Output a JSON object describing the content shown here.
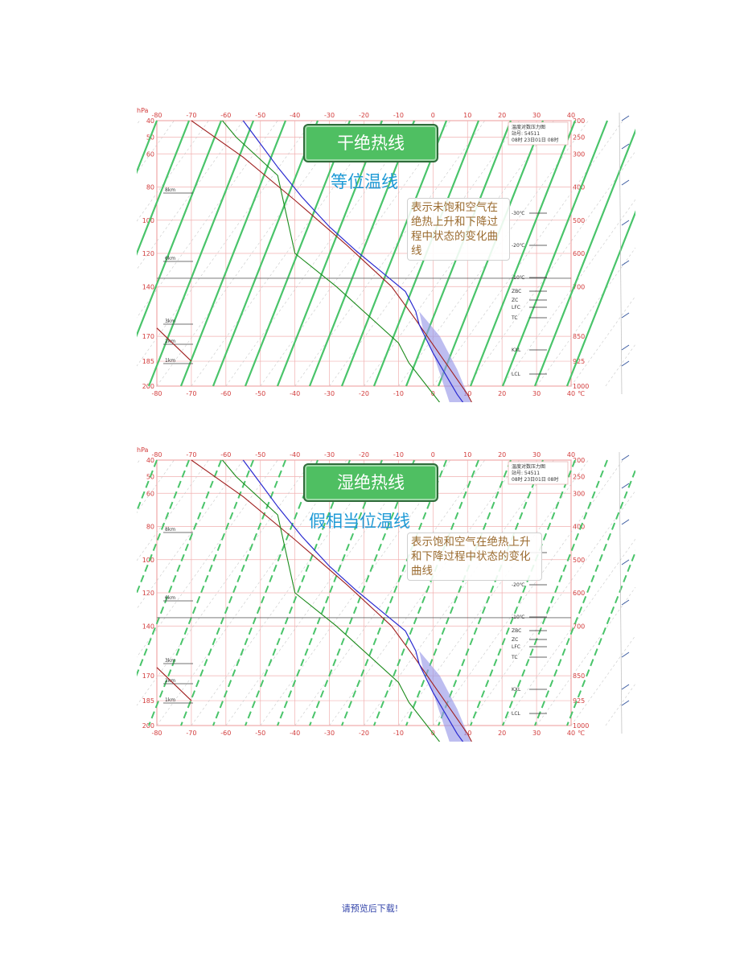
{
  "charts": [
    {
      "id": "fig1",
      "title_box": "干绝热线",
      "subtitle": "等位温线",
      "annotation": "表示未饱和空气在绝热上升和下降过程中状态的变化曲线",
      "line_style": "solid"
    },
    {
      "id": "fig2",
      "title_box": "湿绝热线",
      "subtitle": "假相当位温线",
      "annotation": "表示饱和空气在绝热上升和下降过程中状态的变化曲线",
      "line_style": "dashed"
    }
  ],
  "chart_data": {
    "type": "line",
    "unit_x": "℃",
    "unit_y": "hPa",
    "x_ticks": [
      -80,
      -70,
      -60,
      -50,
      -40,
      -30,
      -20,
      -10,
      0,
      10,
      20,
      30,
      40
    ],
    "left_y_ticks": [
      "40",
      "50",
      "60",
      "80",
      "100",
      "120",
      "140",
      "170",
      "185",
      "200"
    ],
    "right_y_ticks": [
      "200",
      "250",
      "300",
      "400",
      "500",
      "600",
      "700",
      "850",
      "925",
      "1000"
    ],
    "left_height_marks": [
      "8km",
      "6km",
      "3km",
      "2km",
      "1km"
    ],
    "right_level_labels": [
      "-30℃",
      "-20℃",
      "-10℃",
      "ZBC",
      "ZC",
      "LFC",
      "TC",
      "KXL",
      "LCL"
    ],
    "legend_text": [
      "温度对数压力图",
      "站号: 54511",
      "08时 23日01日 08时"
    ],
    "temperature_profile": [
      [
        -55,
        40
      ],
      [
        -50,
        54
      ],
      [
        -45,
        68
      ],
      [
        -38,
        86
      ],
      [
        -30,
        104
      ],
      [
        -22,
        119
      ],
      [
        -15,
        131
      ],
      [
        -8,
        143
      ],
      [
        -5,
        155
      ],
      [
        -4,
        163
      ],
      [
        0,
        180
      ],
      [
        7,
        205
      ],
      [
        14,
        225
      ],
      [
        22,
        250
      ],
      [
        12,
        262
      ]
    ],
    "dewpoint_profile": [
      [
        -61,
        40
      ],
      [
        -57,
        50
      ],
      [
        -45,
        73
      ],
      [
        -40,
        120
      ],
      [
        -28,
        140
      ],
      [
        -10,
        174
      ],
      [
        -7,
        186
      ],
      [
        2,
        210
      ],
      [
        7,
        232
      ],
      [
        13,
        250
      ],
      [
        15,
        262
      ]
    ],
    "parcel_path": [
      [
        -70,
        40
      ],
      [
        -55,
        62
      ],
      [
        -40,
        88
      ],
      [
        -25,
        115
      ],
      [
        -12,
        140
      ],
      [
        -5,
        160
      ],
      [
        0,
        175
      ],
      [
        10,
        205
      ],
      [
        20,
        245
      ]
    ],
    "left_profile_blue": [
      [
        -55,
        210
      ],
      [
        -54,
        240
      ],
      [
        -51,
        300
      ],
      [
        -56,
        322
      ],
      [
        -57,
        345
      ]
    ],
    "left_profile_green": [
      [
        -65,
        210
      ],
      [
        -62,
        260
      ],
      [
        -58,
        300
      ],
      [
        -60,
        325
      ],
      [
        -62,
        345
      ],
      [
        -55,
        338
      ]
    ]
  }
}
